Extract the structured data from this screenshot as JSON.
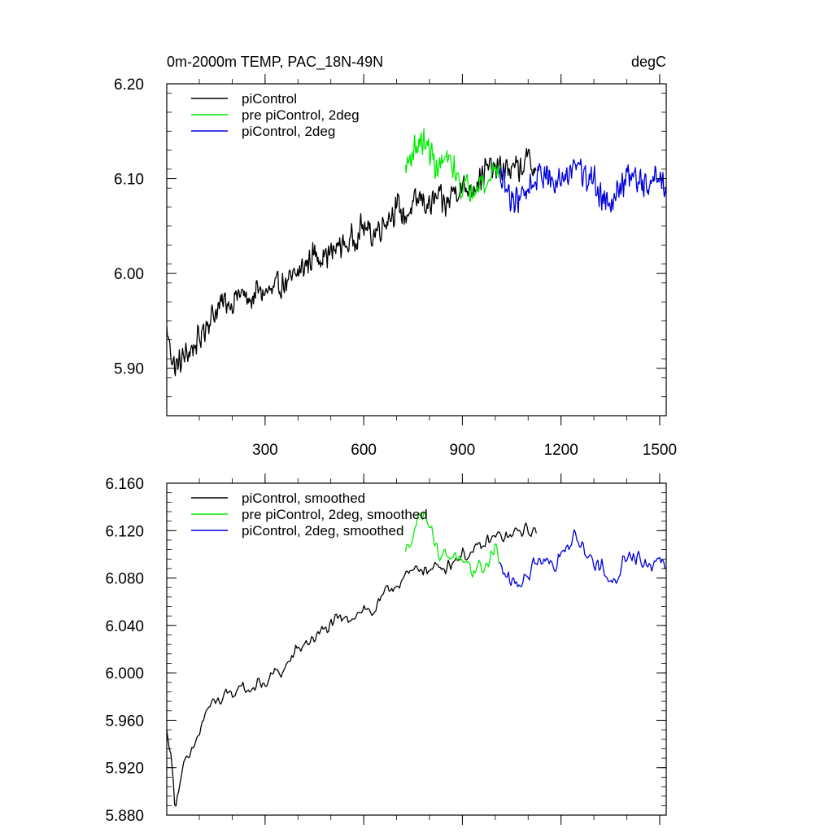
{
  "chart_data": [
    {
      "type": "line",
      "title": "0m-2000m TEMP, PAC_18N-49N",
      "units": "degC",
      "xlabel": "",
      "ylabel": "",
      "xlim": [
        1,
        1520
      ],
      "ylim": [
        5.85,
        6.2
      ],
      "xticks": [
        300,
        600,
        900,
        1200,
        1500
      ],
      "xtick_labels": [
        "300",
        "600",
        "900",
        "1200",
        "1500"
      ],
      "yticks": [
        5.9,
        6.0,
        6.1,
        6.2
      ],
      "ytick_labels": [
        "5.90",
        "6.00",
        "6.10",
        "6.20"
      ],
      "x_minor_step": 100,
      "y_minor_step": 0.02,
      "legend_position": "top-left",
      "series": [
        {
          "name": "piControl",
          "color": "#000000",
          "x": [
            1,
            25,
            50,
            75,
            100,
            125,
            150,
            175,
            200,
            225,
            250,
            275,
            300,
            325,
            350,
            375,
            400,
            425,
            450,
            475,
            500,
            525,
            550,
            575,
            600,
            625,
            650,
            675,
            700,
            725,
            750,
            775,
            800,
            825,
            850,
            875,
            900,
            925,
            950,
            975,
            1000,
            1025,
            1050,
            1075,
            1100,
            1125
          ],
          "values": [
            5.94,
            5.9,
            5.91,
            5.92,
            5.93,
            5.95,
            5.96,
            5.97,
            5.97,
            5.98,
            5.97,
            5.98,
            5.98,
            5.98,
            5.99,
            5.99,
            6.0,
            6.01,
            6.02,
            6.02,
            6.02,
            6.03,
            6.03,
            6.04,
            6.05,
            6.04,
            6.05,
            6.06,
            6.07,
            6.06,
            6.07,
            6.08,
            6.07,
            6.08,
            6.07,
            6.09,
            6.09,
            6.09,
            6.1,
            6.11,
            6.11,
            6.11,
            6.11,
            6.11,
            6.12,
            6.11
          ],
          "noise": 0.018,
          "step": 2
        },
        {
          "name": "pre piControl, 2deg",
          "color": "#00ee00",
          "x": [
            727,
            750,
            775,
            800,
            825,
            850,
            875,
            900,
            925,
            950,
            975,
            1000,
            1012
          ],
          "values": [
            6.11,
            6.13,
            6.14,
            6.13,
            6.11,
            6.12,
            6.11,
            6.09,
            6.09,
            6.1,
            6.09,
            6.12,
            6.1
          ],
          "noise": 0.018,
          "step": 2
        },
        {
          "name": "piControl, 2deg",
          "color": "#0000dd",
          "x": [
            1012,
            1050,
            1075,
            1100,
            1125,
            1150,
            1175,
            1200,
            1225,
            1250,
            1275,
            1300,
            1325,
            1350,
            1375,
            1400,
            1425,
            1450,
            1475,
            1500,
            1520
          ],
          "values": [
            6.1,
            6.08,
            6.08,
            6.09,
            6.1,
            6.11,
            6.09,
            6.1,
            6.11,
            6.12,
            6.1,
            6.1,
            6.08,
            6.08,
            6.09,
            6.1,
            6.1,
            6.09,
            6.1,
            6.1,
            6.09
          ],
          "noise": 0.02,
          "step": 2
        }
      ]
    },
    {
      "type": "line",
      "title": "",
      "xlabel": "",
      "ylabel": "",
      "xlim": [
        1,
        1520
      ],
      "ylim": [
        5.88,
        6.16
      ],
      "xticks": [
        300,
        600,
        900,
        1200,
        1500
      ],
      "xtick_labels": [],
      "yticks": [
        5.88,
        5.92,
        5.96,
        6.0,
        6.04,
        6.08,
        6.12,
        6.16
      ],
      "ytick_labels": [
        "5.880",
        "5.920",
        "5.960",
        "6.000",
        "6.040",
        "6.080",
        "6.120",
        "6.160"
      ],
      "x_minor_step": 100,
      "y_minor_step": 0.008,
      "legend_position": "top-left",
      "series": [
        {
          "name": "piControl, smoothed",
          "color": "#000000",
          "x": [
            1,
            10,
            20,
            25,
            35,
            50,
            75,
            100,
            125,
            150,
            175,
            200,
            225,
            250,
            275,
            300,
            325,
            350,
            375,
            400,
            425,
            450,
            475,
            500,
            525,
            550,
            575,
            600,
            625,
            650,
            675,
            700,
            725,
            750,
            775,
            800,
            825,
            850,
            875,
            900,
            925,
            950,
            975,
            1000,
            1025,
            1050,
            1075,
            1100,
            1125
          ],
          "values": [
            5.95,
            5.94,
            5.91,
            5.89,
            5.9,
            5.92,
            5.93,
            5.95,
            5.97,
            5.975,
            5.98,
            5.98,
            5.99,
            5.985,
            5.99,
            5.99,
            6.0,
            6.0,
            6.01,
            6.02,
            6.025,
            6.03,
            6.035,
            6.04,
            6.045,
            6.045,
            6.05,
            6.055,
            6.05,
            6.06,
            6.07,
            6.075,
            6.08,
            6.085,
            6.09,
            6.085,
            6.09,
            6.09,
            6.095,
            6.1,
            6.1,
            6.105,
            6.11,
            6.115,
            6.115,
            6.115,
            6.12,
            6.12,
            6.12
          ],
          "noise": 0.007,
          "step": 4
        },
        {
          "name": "pre piControl, 2deg, smoothed",
          "color": "#00ee00",
          "x": [
            727,
            750,
            775,
            800,
            825,
            850,
            875,
            900,
            925,
            950,
            975,
            1000,
            1012
          ],
          "values": [
            6.1,
            6.12,
            6.135,
            6.13,
            6.1,
            6.1,
            6.1,
            6.09,
            6.085,
            6.09,
            6.09,
            6.11,
            6.09
          ],
          "noise": 0.008,
          "step": 4
        },
        {
          "name": "piControl, 2deg, smoothed",
          "color": "#0000dd",
          "x": [
            1012,
            1050,
            1075,
            1100,
            1125,
            1150,
            1175,
            1200,
            1225,
            1250,
            1275,
            1300,
            1325,
            1350,
            1375,
            1400,
            1425,
            1450,
            1475,
            1500,
            1520
          ],
          "values": [
            6.09,
            6.075,
            6.075,
            6.085,
            6.095,
            6.1,
            6.09,
            6.1,
            6.11,
            6.115,
            6.1,
            6.095,
            6.09,
            6.07,
            6.085,
            6.1,
            6.1,
            6.095,
            6.09,
            6.1,
            6.095
          ],
          "noise": 0.01,
          "step": 4
        }
      ]
    }
  ]
}
